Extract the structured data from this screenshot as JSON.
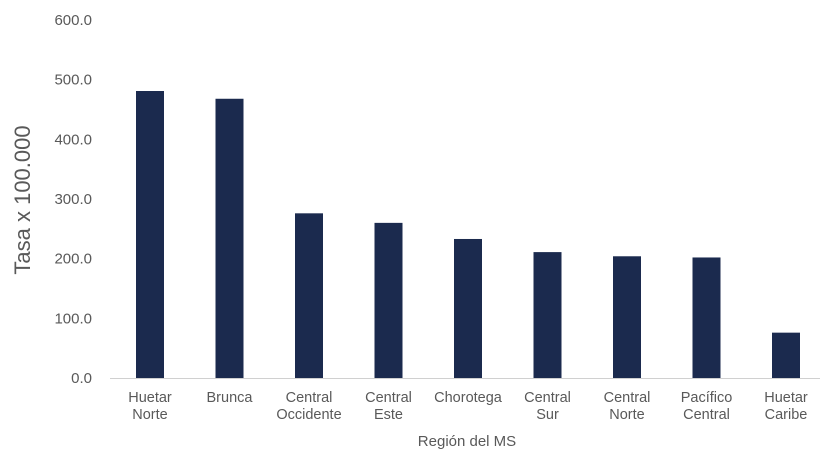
{
  "chart_data": {
    "type": "bar",
    "title": "",
    "xlabel": "Región del MS",
    "ylabel": "Tasa x 100.000",
    "ylim": [
      0,
      600
    ],
    "yticks": [
      "0.0",
      "100.0",
      "200.0",
      "300.0",
      "400.0",
      "500.0",
      "600.0"
    ],
    "categories": [
      [
        "Huetar",
        "Norte"
      ],
      [
        "Brunca"
      ],
      [
        "Central",
        "Occidente"
      ],
      [
        "Central",
        "Este"
      ],
      [
        "Chorotega"
      ],
      [
        "Central",
        "Sur"
      ],
      [
        "Central",
        "Norte"
      ],
      [
        "Pacífico",
        "Central"
      ],
      [
        "Huetar",
        "Caribe"
      ]
    ],
    "values": [
      481,
      468,
      276,
      260,
      233,
      211,
      204,
      202,
      76
    ],
    "bar_color": "#1b2a4e",
    "grid": false,
    "legend": "none"
  }
}
